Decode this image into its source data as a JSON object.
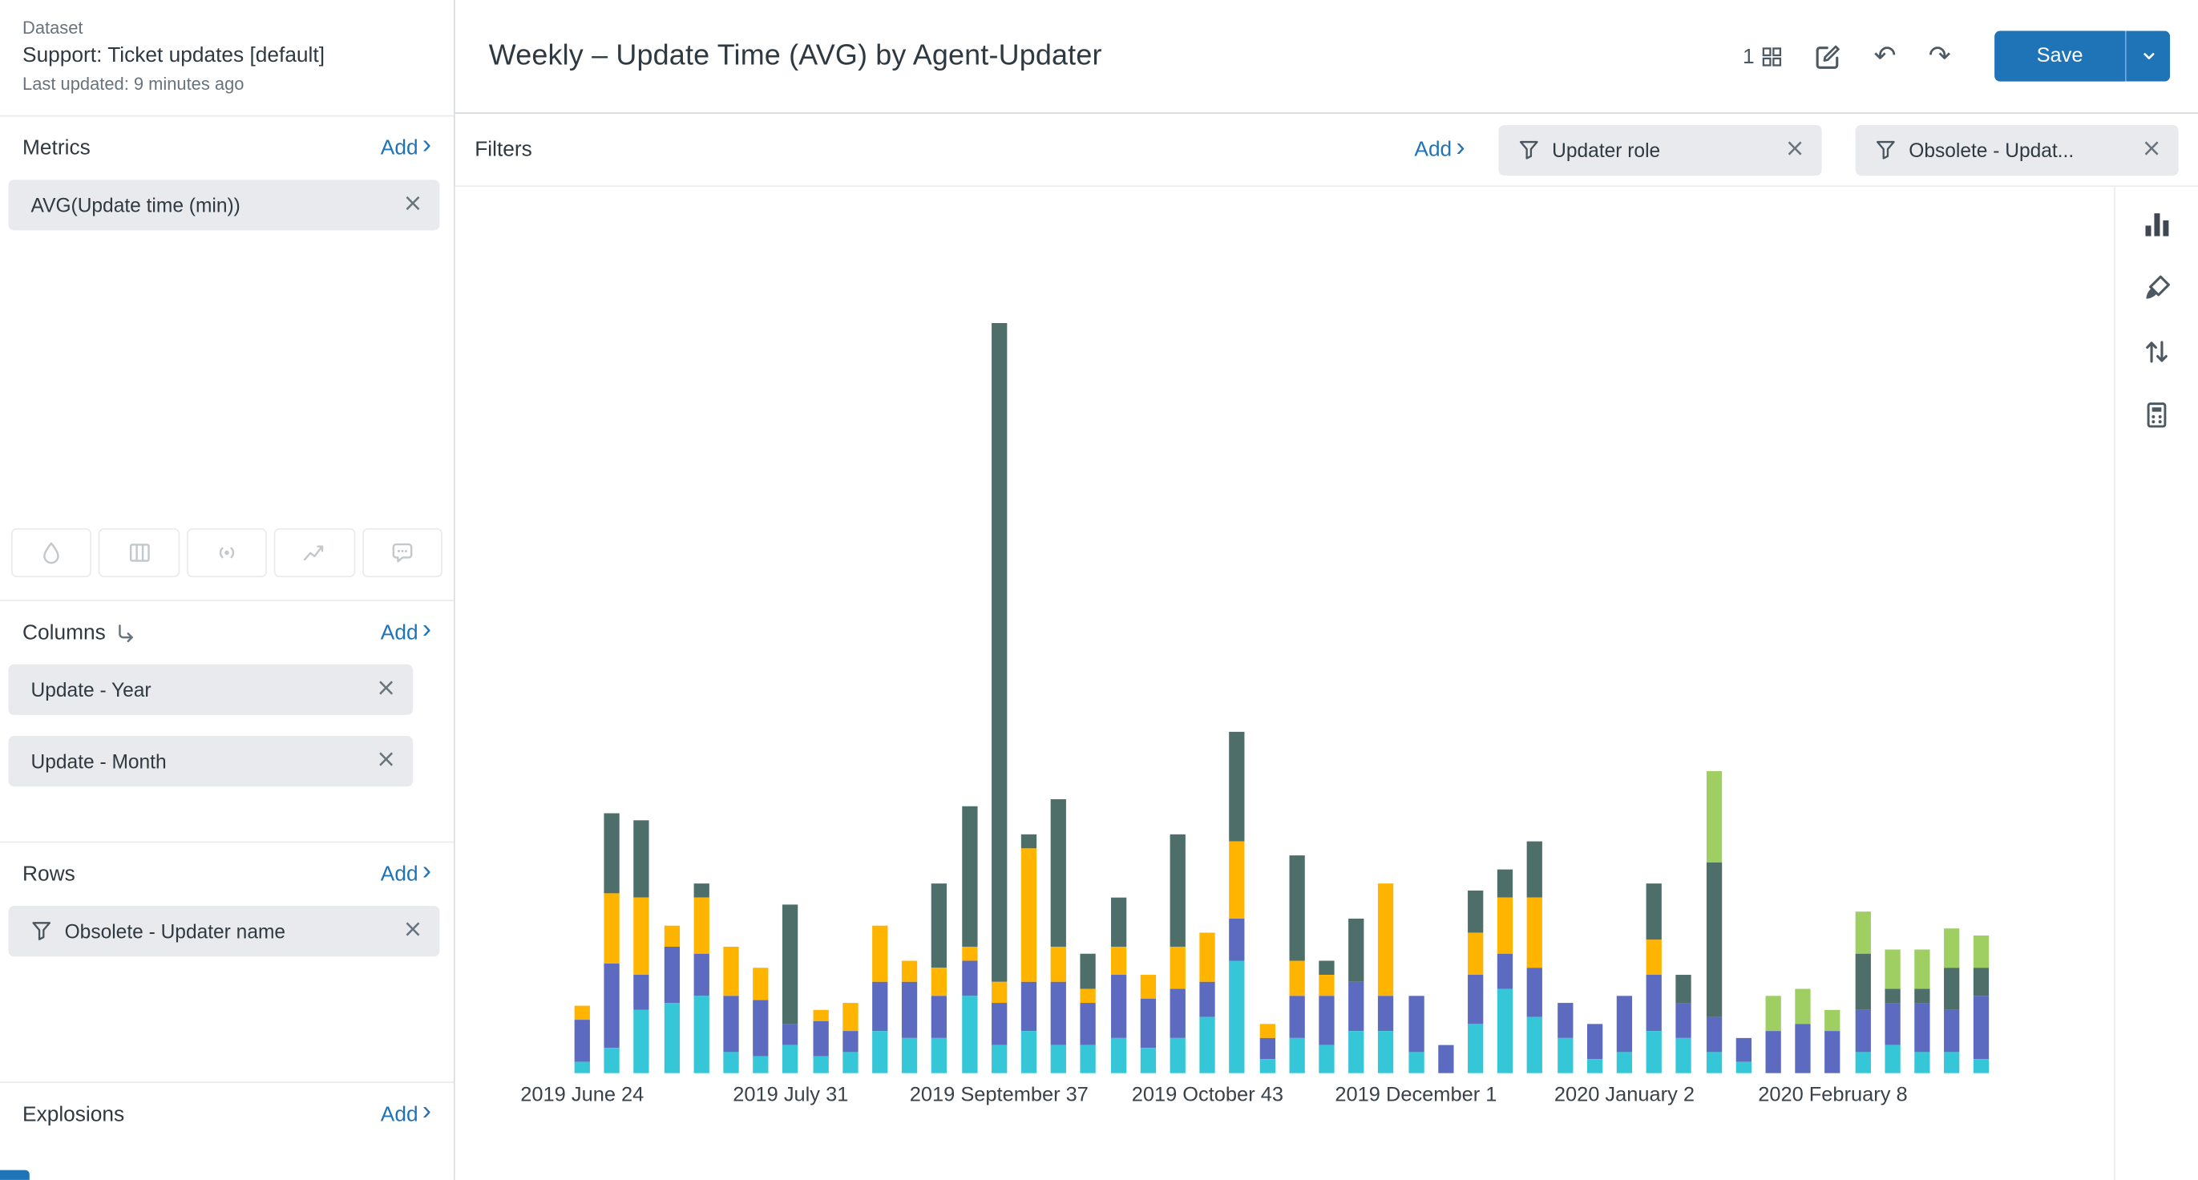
{
  "colors": {
    "accent_blue": "#1f73b7",
    "chip_bg": "#e8eaed",
    "icon_gray": "#4c5962"
  },
  "sidebar": {
    "dataset": {
      "eyebrow": "Dataset",
      "name": "Support: Ticket updates [default]",
      "last_updated": "Last updated: 9 minutes ago"
    },
    "metrics": {
      "title": "Metrics",
      "add_label": "Add",
      "chips": [
        {
          "label": "AVG(Update time (min))"
        }
      ]
    },
    "tool_icons": [
      "droplet-icon",
      "table-columns-icon",
      "broadcast-icon",
      "trend-icon",
      "comment-icon"
    ],
    "columns": {
      "title": "Columns",
      "add_label": "Add",
      "chips": [
        {
          "label": "Update - Year"
        },
        {
          "label": "Update - Month"
        }
      ]
    },
    "rows": {
      "title": "Rows",
      "add_label": "Add",
      "chips": [
        {
          "label": "Obsolete - Updater name"
        }
      ]
    },
    "explosions": {
      "title": "Explosions",
      "add_label": "Add"
    }
  },
  "header": {
    "title": "Weekly – Update Time (AVG) by Agent-Updater",
    "tab_count": "1",
    "undo_glyph": "↶",
    "redo_glyph": "↷",
    "save_label": "Save"
  },
  "filters": {
    "title": "Filters",
    "add_label": "Add",
    "chips": [
      {
        "label": "Updater role"
      },
      {
        "label": "Obsolete - Updat..."
      }
    ]
  },
  "chart_data": {
    "type": "bar",
    "stacked": true,
    "title": "Weekly – Update Time (AVG) by Agent-Updater",
    "ylabel": "AVG(Update time (min))",
    "grid": false,
    "legend": "none",
    "x_tick_labels": [
      "2019 June 24",
      "2019 July 31",
      "2019 September 37",
      "2019 October 43",
      "2019 December 1",
      "2020 January 2",
      "2020 February 8"
    ],
    "tick_bar_indices": [
      0,
      7,
      14,
      21,
      28,
      35,
      42
    ],
    "note": "values estimated in minutes; no y-axis labels visible",
    "series": [
      {
        "name": "stack-cyan",
        "color": "#35c6d8",
        "values": [
          8,
          18,
          45,
          50,
          55,
          15,
          12,
          20,
          12,
          15,
          30,
          25,
          25,
          55,
          20,
          30,
          20,
          20,
          25,
          18,
          25,
          40,
          80,
          10,
          25,
          20,
          30,
          30,
          15,
          0,
          35,
          60,
          40,
          25,
          10,
          15,
          30,
          25,
          15,
          8,
          0,
          0,
          0,
          15,
          20,
          15,
          15,
          10
        ]
      },
      {
        "name": "stack-indigo",
        "color": "#5c6bc0",
        "values": [
          30,
          60,
          25,
          40,
          30,
          40,
          40,
          15,
          25,
          15,
          35,
          40,
          30,
          25,
          30,
          35,
          45,
          30,
          45,
          35,
          35,
          25,
          30,
          15,
          30,
          35,
          35,
          25,
          40,
          20,
          35,
          25,
          35,
          25,
          25,
          40,
          40,
          25,
          25,
          17,
          30,
          35,
          30,
          30,
          30,
          35,
          30,
          45
        ]
      },
      {
        "name": "stack-amber",
        "color": "#ffb400",
        "values": [
          10,
          50,
          55,
          15,
          40,
          35,
          23,
          0,
          8,
          20,
          40,
          15,
          20,
          10,
          15,
          95,
          25,
          10,
          20,
          17,
          30,
          35,
          55,
          10,
          25,
          15,
          0,
          80,
          0,
          0,
          30,
          40,
          50,
          0,
          0,
          0,
          25,
          0,
          0,
          0,
          0,
          0,
          0,
          0,
          0,
          0,
          0,
          0
        ]
      },
      {
        "name": "stack-slate",
        "color": "#4e6e6a",
        "values": [
          0,
          57,
          55,
          0,
          10,
          0,
          0,
          85,
          0,
          0,
          0,
          0,
          60,
          100,
          469,
          10,
          105,
          25,
          35,
          0,
          80,
          0,
          78,
          0,
          75,
          10,
          45,
          0,
          0,
          0,
          30,
          20,
          40,
          0,
          0,
          0,
          40,
          20,
          110,
          0,
          0,
          0,
          0,
          40,
          10,
          10,
          30,
          20
        ]
      },
      {
        "name": "stack-green",
        "color": "#9fcf63",
        "values": [
          0,
          0,
          0,
          0,
          0,
          0,
          0,
          0,
          0,
          0,
          0,
          0,
          0,
          0,
          0,
          0,
          0,
          0,
          0,
          0,
          0,
          0,
          0,
          0,
          0,
          0,
          0,
          0,
          0,
          0,
          0,
          0,
          0,
          0,
          0,
          0,
          0,
          0,
          65,
          0,
          25,
          25,
          15,
          30,
          28,
          28,
          28,
          23
        ]
      }
    ]
  }
}
